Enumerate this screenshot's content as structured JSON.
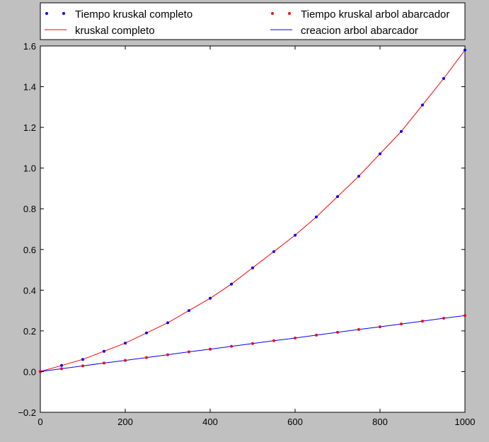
{
  "chart_data": {
    "type": "scatter",
    "x": [
      0,
      50,
      100,
      150,
      200,
      250,
      300,
      350,
      400,
      450,
      500,
      550,
      600,
      650,
      700,
      750,
      800,
      850,
      900,
      950,
      1000
    ],
    "xlim": [
      0,
      1000
    ],
    "ylim": [
      -0.2,
      1.6
    ],
    "xticks": [
      "0",
      "200",
      "400",
      "600",
      "800",
      "1000"
    ],
    "yticks": [
      "−0.2",
      "0.0",
      "0.2",
      "0.4",
      "0.6",
      "0.8",
      "1.0",
      "1.2",
      "1.4",
      "1.6"
    ],
    "xlabel": "",
    "ylabel": "",
    "title": "",
    "grid": false,
    "legend_placement": "top, above plot, two columns",
    "series": [
      {
        "name": "Tiempo kruskal completo",
        "kind": "points",
        "color": "#0000ff",
        "values": [
          0.0,
          0.03,
          0.06,
          0.1,
          0.14,
          0.19,
          0.24,
          0.3,
          0.36,
          0.43,
          0.51,
          0.59,
          0.67,
          0.76,
          0.86,
          0.96,
          1.07,
          1.18,
          1.31,
          1.44,
          1.58
        ]
      },
      {
        "name": "kruskal completo",
        "kind": "line",
        "color": "#ff0000",
        "values": [
          0.0,
          0.03,
          0.06,
          0.1,
          0.14,
          0.19,
          0.24,
          0.3,
          0.36,
          0.43,
          0.51,
          0.59,
          0.67,
          0.76,
          0.86,
          0.96,
          1.07,
          1.18,
          1.31,
          1.44,
          1.58
        ]
      },
      {
        "name": "Tiempo kruskal arbol abarcador",
        "kind": "points",
        "color": "#ff0000",
        "values": [
          0.0,
          0.014,
          0.028,
          0.042,
          0.055,
          0.069,
          0.083,
          0.097,
          0.11,
          0.124,
          0.138,
          0.152,
          0.165,
          0.179,
          0.193,
          0.207,
          0.22,
          0.234,
          0.248,
          0.262,
          0.275
        ]
      },
      {
        "name": "creacion arbol abarcador",
        "kind": "line",
        "color": "#0000ff",
        "values": [
          0.0,
          0.014,
          0.028,
          0.042,
          0.055,
          0.069,
          0.083,
          0.097,
          0.11,
          0.124,
          0.138,
          0.152,
          0.165,
          0.179,
          0.193,
          0.207,
          0.22,
          0.234,
          0.248,
          0.262,
          0.275
        ]
      }
    ]
  }
}
